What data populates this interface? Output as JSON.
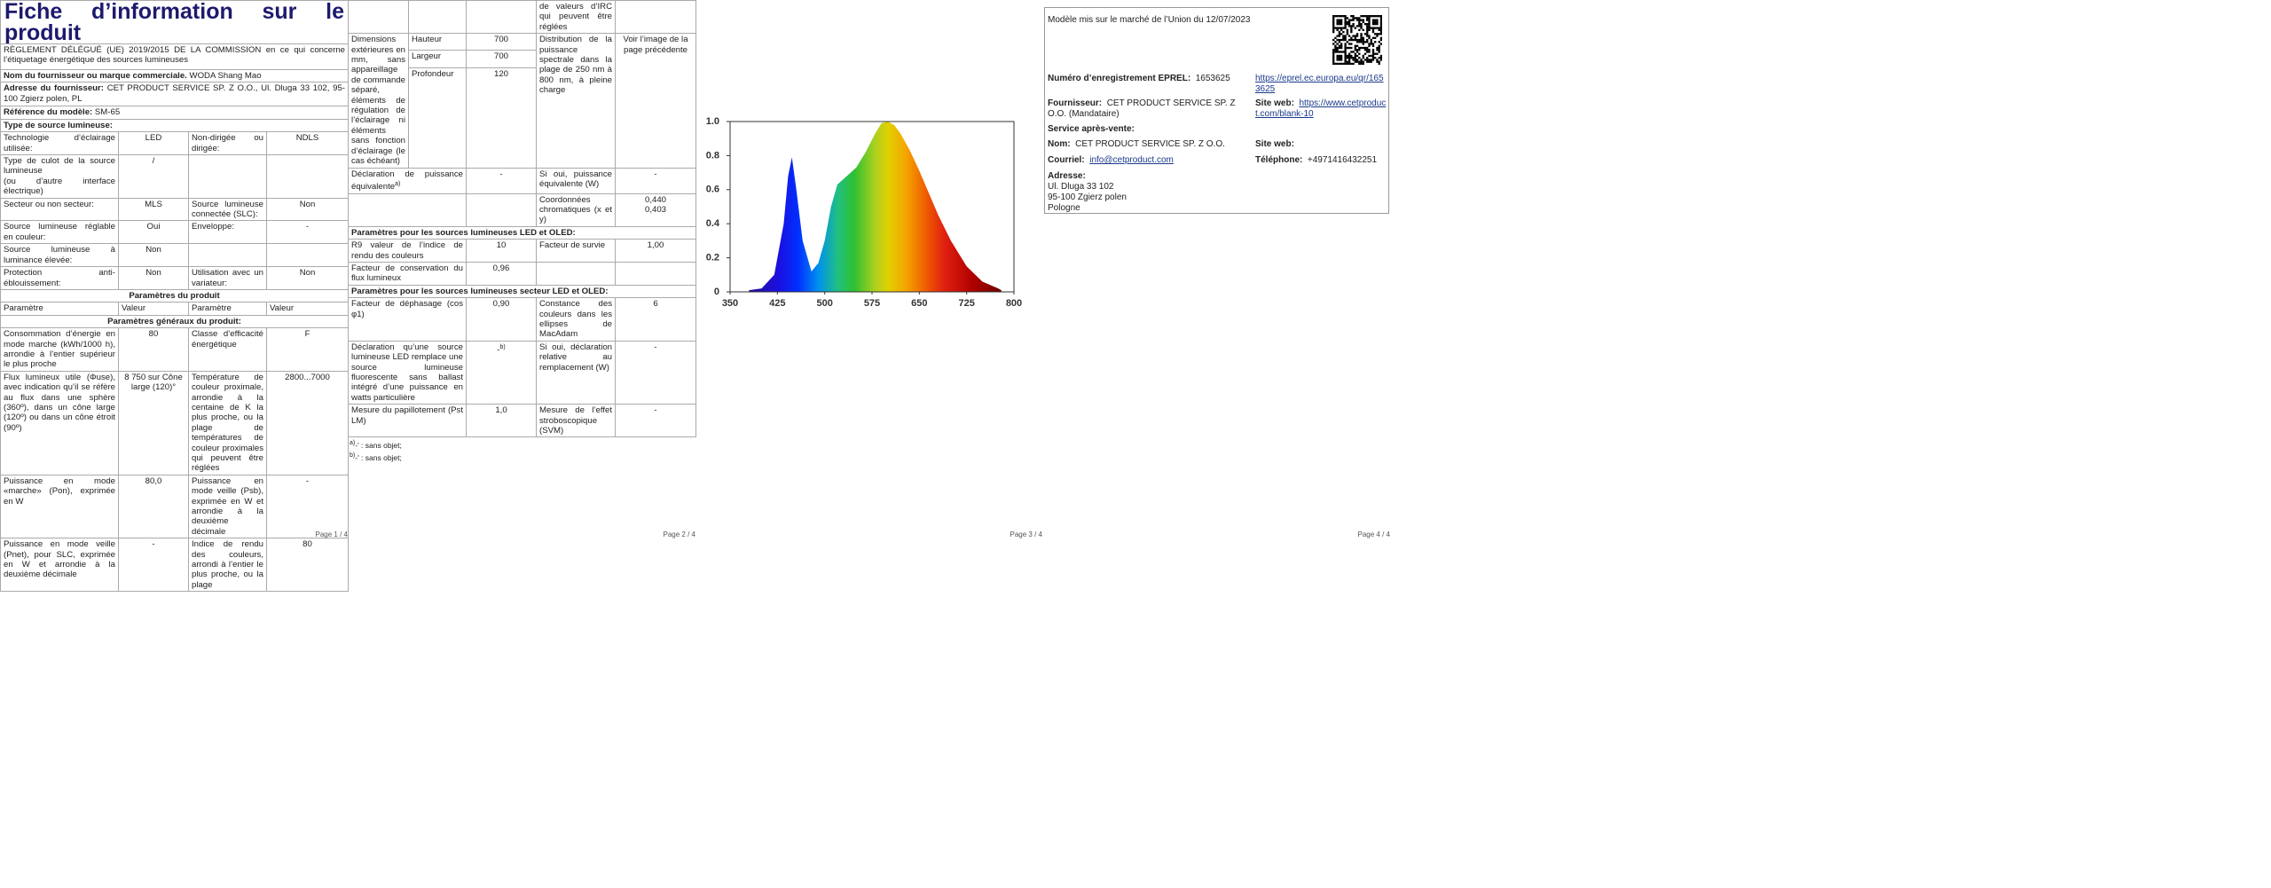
{
  "page1": {
    "title": "Fiche d’information sur le produit",
    "regulation": "RÈGLEMENT DÉLÉGUÉ (UE) 2019/2015 DE LA COMMISSION en ce qui concerne l’étiquetage énergétique des sources lumineuses",
    "supplier": {
      "label": "Nom du fournisseur ou marque commerciale.",
      "value": "WODA Shang Mao"
    },
    "address": {
      "label": "Adresse du fournisseur:",
      "value": "CET PRODUCT SERVICE SP. Z O.O., Ul. Dluga 33 102, 95-100 Zgierz polen, PL"
    },
    "model": {
      "label": "Référence du modèle:",
      "value": "SM-65"
    },
    "source_type": "Type de source lumineuse:",
    "rows": [
      [
        "Technologie d’éclairage utilisée:",
        "LED",
        "Non-dirigée ou dirigée:",
        "NDLS"
      ],
      [
        "Type de culot de la source lumineuse",
        "(ou d’autre interface électrique)",
        "/"
      ],
      [
        "Secteur ou non secteur:",
        "MLS",
        "Source lumineuse connectée (SLC):",
        "Non"
      ],
      [
        "Source lumineuse réglable en couleur:",
        "Oui",
        "Enveloppe:",
        "-"
      ],
      [
        "Source lumineuse à luminance élevée:",
        "Non"
      ],
      [
        "Protection anti-éblouissement:",
        "Non",
        "Utilisation avec un variateur:",
        "Non"
      ],
      [
        "Paramètres du produit"
      ],
      [
        "Paramètre",
        "Valeur",
        "Paramètre",
        "Valeur"
      ],
      [
        "Paramètres généraux du produit:"
      ],
      [
        "Consommation d’énergie en mode marche (kWh/1000 h), arrondie à l’entier supérieur le plus proche",
        "80",
        "Classe d’efficacité énergétique",
        "F"
      ],
      [
        "Flux lumineux utile (Φuse), avec indication qu’il se réfère au flux dans une sphère (360º), dans un cône large (120º) ou dans un cône étroit (90º)",
        "8 750 sur Cône large (120)°",
        "Température de couleur proximale, arrondie à la centaine de K la plus proche, ou la plage de températures de couleur proximales qui peuvent être réglées",
        "2800...7000"
      ],
      [
        "Puissance en mode «marche» (Pon), exprimée en W",
        "80,0",
        "Puissance en mode veille (Psb), exprimée en W et arrondie à la deuxième décimale",
        "-"
      ],
      [
        "Puissance en mode veille (Pnet), pour SLC, exprimée en W et arrondie à la deuxième décimale",
        "-",
        "Indice de rendu des couleurs, arrondi à l’entier le plus proche, ou la plage",
        "80"
      ]
    ],
    "footer": "Page 1 / 4"
  },
  "page2": {
    "rows": [
      [
        "de valeurs d’IRC qui peuvent être réglées"
      ],
      [
        "Dimensions extérieures en mm, sans appareillage de commande séparé, éléments de régulation de l’éclairage ni éléments sans fonction d’éclairage (le cas échéant)",
        "Hauteur",
        "700",
        "Largeur",
        "700",
        "Profondeur",
        "120",
        "Distribution de la puissance spectrale dans la plage de 250 nm à 800 nm, à pleine charge",
        "Voir l’image de la page précédente"
      ],
      [
        "Déclaration de puissance équivalente",
        "a)",
        "-",
        "Si oui, puissance équivalente (W)",
        "-"
      ],
      [
        "Coordonnées chromatiques (x et y)",
        "0,440",
        "0,403"
      ],
      [
        "Paramètres pour les sources lumineuses LED et OLED:"
      ],
      [
        "R9 valeur de l’indice de rendu des couleurs",
        "10",
        "Facteur de survie",
        "1,00"
      ],
      [
        "Facteur de conservation du flux lumineux",
        "0,96"
      ],
      [
        "Paramètres pour les sources lumineuses secteur LED et OLED:"
      ],
      [
        "Facteur de déphasage (cos φ1)",
        "0,90",
        "Constance des couleurs dans les ellipses de MacAdam",
        "6"
      ],
      [
        "Déclaration qu’une source lumineuse LED remplace une source lumineuse fluorescente sans ballast intégré d’une puissance en watts particulière",
        "-",
        "b)",
        "Si oui, déclaration relative au remplacement (W)",
        "-"
      ],
      [
        "Mesure du papillotement (Pst LM)",
        "1,0",
        "Mesure de l’effet stroboscopique (SVM)",
        "-"
      ]
    ],
    "notes": [
      {
        "mark": "a)",
        "text": "-' : sans objet;"
      },
      {
        "mark": "b)",
        "text": "-' : sans objet;"
      }
    ],
    "footer": "Page 2 / 4"
  },
  "chart_data": {
    "type": "area",
    "x": [
      380,
      400,
      420,
      435,
      442,
      448,
      455,
      465,
      479,
      490,
      500,
      510,
      520,
      535,
      550,
      565,
      580,
      590,
      600,
      610,
      620,
      635,
      650,
      665,
      680,
      700,
      725,
      750,
      775,
      780
    ],
    "values": [
      0.01,
      0.02,
      0.1,
      0.4,
      0.68,
      0.79,
      0.6,
      0.3,
      0.12,
      0.17,
      0.3,
      0.5,
      0.63,
      0.68,
      0.73,
      0.82,
      0.93,
      0.99,
      1.0,
      0.98,
      0.93,
      0.83,
      0.71,
      0.58,
      0.45,
      0.3,
      0.15,
      0.06,
      0.02,
      0.01
    ],
    "xlim": [
      350,
      800
    ],
    "ylim": [
      0,
      1
    ],
    "xticks": [
      350,
      425,
      500,
      575,
      650,
      725,
      800
    ],
    "yticks": [
      0,
      0.2,
      0.4,
      0.6,
      0.8,
      {
        "value": 1,
        "label": "1.0"
      }
    ]
  },
  "page3": {
    "footer": "Page 3 / 4"
  },
  "page4": {
    "market": "Modèle mis sur le marché de l’Union du 12/07/2023",
    "eprel": {
      "label": "Numéro d’enregistrement EPREL:",
      "value": "1653625",
      "link": "https://eprel.ec.europa.eu/qr/1653625"
    },
    "supplier": {
      "label": "Fournisseur:",
      "value": "CET PRODUCT SERVICE SP. Z O.O. (Mandataire)",
      "web_label": "Site web:",
      "web": "https://www.cetproduct.com/blank-10"
    },
    "service": "Service après-vente:",
    "name": {
      "label": "Nom:",
      "value": "CET PRODUCT SERVICE SP. Z O.O.",
      "web_label": "Site web:"
    },
    "mail": {
      "label": "Courriel:",
      "value": "info@cetproduct.com",
      "phone_label": "Téléphone:",
      "phone": "+4971416432251"
    },
    "address": {
      "label": "Adresse:",
      "lines": [
        "Ul. Dluga 33 102",
        "95-100 Zgierz polen",
        "Pologne"
      ]
    },
    "footer": "Page 4 / 4"
  }
}
